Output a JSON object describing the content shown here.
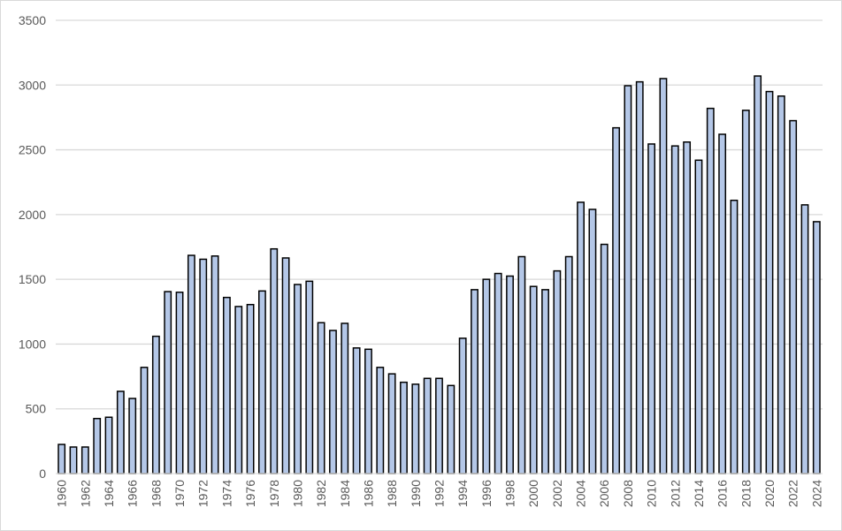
{
  "chart_data": {
    "type": "bar",
    "title": "",
    "xlabel": "",
    "ylabel": "",
    "ylim": [
      0,
      3500
    ],
    "yticks": [
      0,
      500,
      1000,
      1500,
      2000,
      2500,
      3000,
      3500
    ],
    "grid": "horizontal",
    "legend": "none",
    "bar_color": "#b4c7e7",
    "bar_edge_color": "#000000",
    "categories": [
      "1960",
      "1961",
      "1962",
      "1963",
      "1964",
      "1965",
      "1966",
      "1967",
      "1968",
      "1969",
      "1970",
      "1971",
      "1972",
      "1973",
      "1974",
      "1975",
      "1976",
      "1977",
      "1978",
      "1979",
      "1980",
      "1981",
      "1982",
      "1983",
      "1984",
      "1985",
      "1986",
      "1987",
      "1988",
      "1989",
      "1990",
      "1991",
      "1992",
      "1993",
      "1994",
      "1995",
      "1996",
      "1997",
      "1998",
      "1999",
      "2000",
      "2001",
      "2002",
      "2003",
      "2004",
      "2005",
      "2006",
      "2007",
      "2008",
      "2009",
      "2010",
      "2011",
      "2012",
      "2013",
      "2014",
      "2015",
      "2016",
      "2017",
      "2018",
      "2019",
      "2020",
      "2021",
      "2022",
      "2023",
      "2024"
    ],
    "xtick_labels": [
      "1960",
      "1962",
      "1964",
      "1966",
      "1968",
      "1970",
      "1972",
      "1974",
      "1976",
      "1978",
      "1980",
      "1982",
      "1984",
      "1986",
      "1988",
      "1990",
      "1992",
      "1994",
      "1996",
      "1998",
      "2000",
      "2002",
      "2004",
      "2006",
      "2008",
      "2010",
      "2012",
      "2014",
      "2016",
      "2018",
      "2020",
      "2022",
      "2024"
    ],
    "values": [
      225,
      205,
      205,
      425,
      435,
      635,
      580,
      820,
      1060,
      1405,
      1400,
      1685,
      1655,
      1680,
      1360,
      1290,
      1305,
      1410,
      1735,
      1665,
      1460,
      1485,
      1165,
      1105,
      1160,
      970,
      960,
      820,
      770,
      705,
      690,
      735,
      735,
      680,
      1045,
      1420,
      1500,
      1545,
      1525,
      1675,
      1445,
      1420,
      1565,
      1675,
      2095,
      2040,
      1770,
      2670,
      2995,
      3025,
      2545,
      3050,
      2530,
      2560,
      2420,
      2820,
      2620,
      2110,
      2805,
      3070,
      2950,
      2915,
      2725,
      2075,
      1945
    ]
  }
}
